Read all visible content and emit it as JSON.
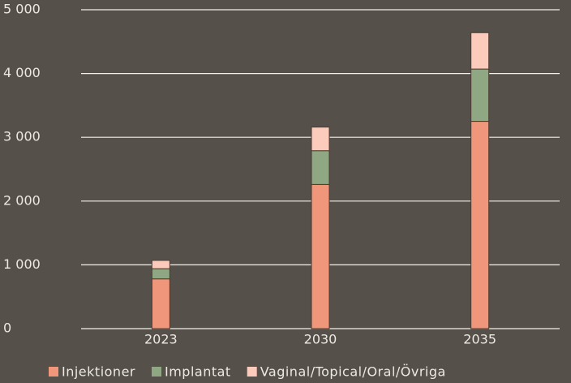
{
  "chart_data": {
    "type": "stacked_bar",
    "categories": [
      "2023",
      "2030",
      "2035"
    ],
    "series": [
      {
        "name": "Injektioner",
        "color": "#f0967a",
        "values": [
          780,
          2260,
          3250
        ]
      },
      {
        "name": "Implantat",
        "color": "#8fa883",
        "values": [
          160,
          530,
          820
        ]
      },
      {
        "name": "Vaginal/Topical/Oral/Övriga",
        "color": "#fccbbb",
        "values": [
          130,
          370,
          570
        ]
      }
    ],
    "ylim": [
      0,
      5000
    ],
    "yticks": [
      0,
      {
        "value": 1000,
        "label": "1 000"
      },
      {
        "value": 2000,
        "label": "2 000"
      },
      {
        "value": 3000,
        "label": "3 000"
      },
      {
        "value": 4000,
        "label": "4 000"
      },
      {
        "value": 5000,
        "label": "5 000"
      }
    ],
    "grid": true,
    "legend": "bottom"
  }
}
